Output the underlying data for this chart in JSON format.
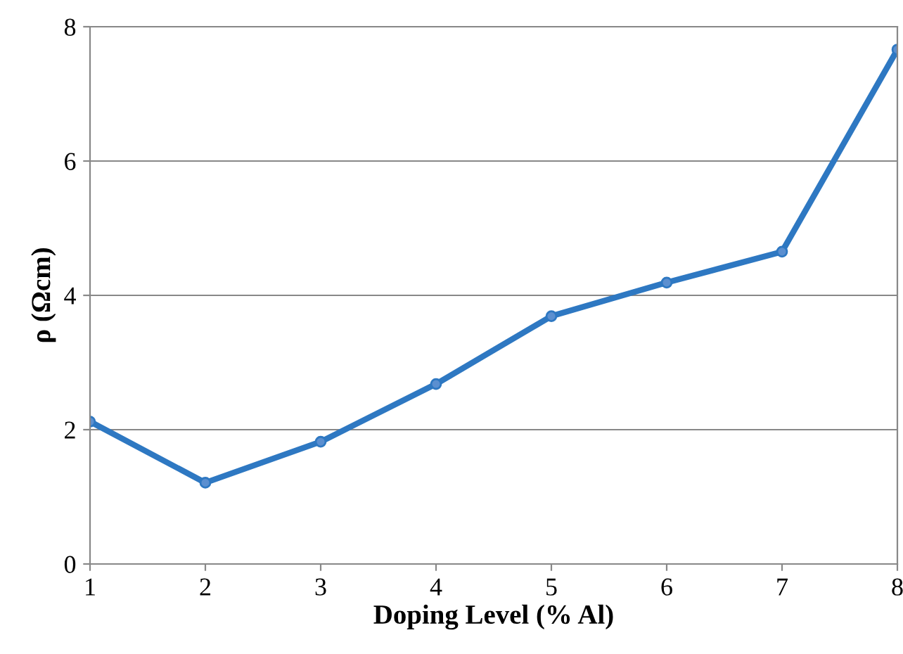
{
  "chart_data": {
    "type": "line",
    "xlabel": "Doping Level (% Al)",
    "ylabel": "ρ (Ωcm)",
    "x": [
      1,
      2,
      3,
      4,
      5,
      6,
      7,
      8
    ],
    "series": [
      {
        "color": "#2e78c2",
        "values": [
          2.12,
          1.21,
          1.82,
          2.68,
          3.69,
          4.19,
          4.65,
          7.66
        ]
      }
    ],
    "xlim": [
      1,
      8
    ],
    "xticks": [
      1,
      2,
      3,
      4,
      5,
      6,
      7,
      8
    ],
    "ylim": [
      0,
      8
    ],
    "yticks": [
      0,
      2,
      4,
      6,
      8
    ],
    "grid": "y",
    "marker": "circle",
    "line_style": "solid"
  }
}
